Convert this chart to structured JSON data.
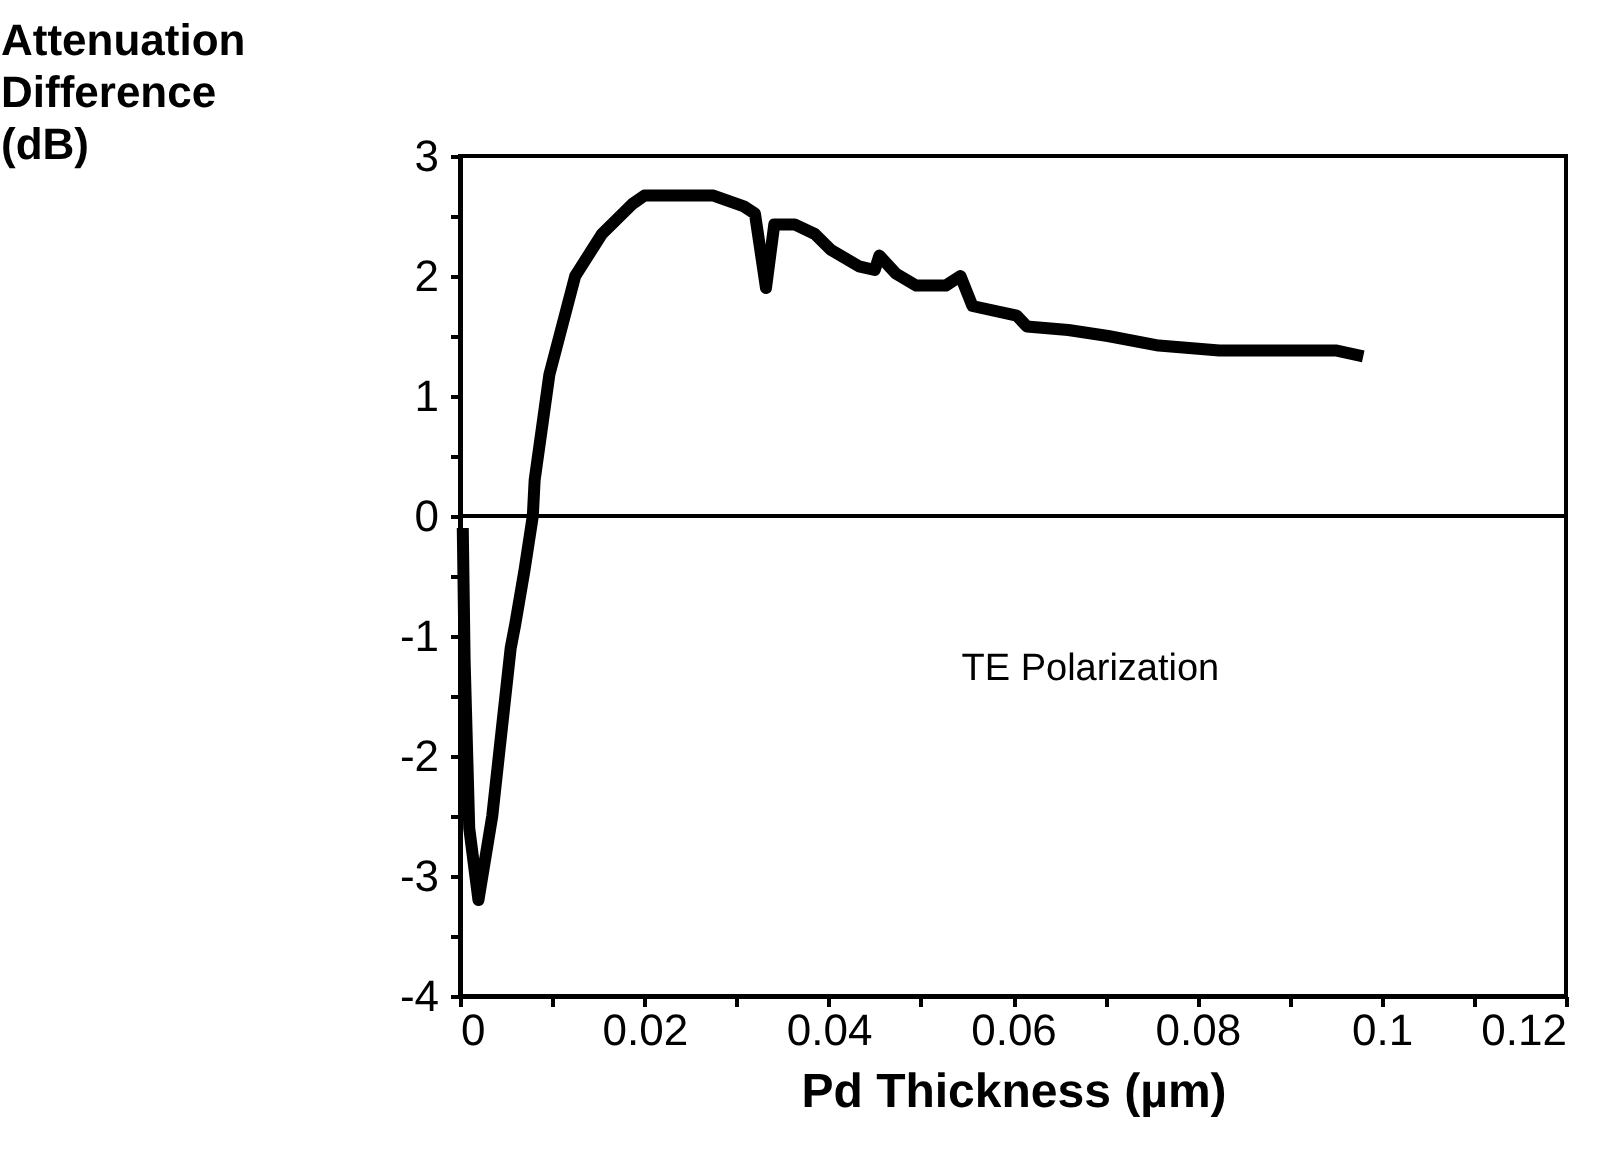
{
  "chart_data": {
    "type": "line",
    "xlabel": "Pd Thickness (µm)",
    "ylabel": "Attenuation Difference (dB)",
    "annotations": [
      "TE Polarization"
    ],
    "x": [
      0.0003,
      0.0005,
      0.001,
      0.002,
      0.0035,
      0.0055,
      0.006,
      0.007,
      0.0079,
      0.0081,
      0.0097,
      0.0125,
      0.0154,
      0.0187,
      0.02,
      0.0275,
      0.0308,
      0.032,
      0.0332,
      0.0341,
      0.0363,
      0.0385,
      0.0402,
      0.0433,
      0.045,
      0.0455,
      0.0473,
      0.0495,
      0.0527,
      0.0543,
      0.0556,
      0.0604,
      0.0615,
      0.066,
      0.0703,
      0.0758,
      0.0824,
      0.095,
      0.098
    ],
    "series": [
      {
        "color": "#000000",
        "values": [
          -0.1,
          -1.2,
          -2.6,
          -3.2,
          -2.5,
          -1.1,
          -0.9,
          -0.45,
          0,
          0.3,
          1.18,
          2.0,
          2.35,
          2.6,
          2.67,
          2.67,
          2.58,
          2.52,
          1.9,
          2.43,
          2.43,
          2.35,
          2.22,
          2.08,
          2.05,
          2.17,
          2.02,
          1.92,
          1.92,
          2.0,
          1.75,
          1.67,
          1.58,
          1.55,
          1.5,
          1.42,
          1.38,
          1.38,
          1.33
        ]
      }
    ],
    "xlim": [
      0,
      0.12
    ],
    "ylim": [
      -4,
      3
    ],
    "xticks": [
      0,
      {
        "value": 0.01,
        "label": null
      },
      0.02,
      {
        "value": 0.03,
        "label": null
      },
      0.04,
      {
        "value": 0.05,
        "label": null
      },
      0.06,
      {
        "value": 0.07,
        "label": null
      },
      0.08,
      {
        "value": 0.09,
        "label": null
      },
      0.1,
      {
        "value": 0.11,
        "label": null
      },
      0.12
    ],
    "yticks": [
      -4,
      {
        "value": -3.5,
        "label": null
      },
      -3,
      {
        "value": -2.5,
        "label": null
      },
      -2,
      {
        "value": -1.5,
        "label": null
      },
      -1,
      {
        "value": -0.5,
        "label": null
      },
      0,
      {
        "value": 0.5,
        "label": null
      },
      1,
      {
        "value": 1.5,
        "label": null
      },
      2,
      {
        "value": 2.5,
        "label": null
      },
      3
    ],
    "ref_lines": [
      {
        "axis": "y",
        "value": 0,
        "color": "#000000"
      }
    ],
    "grid": false,
    "marker": "none",
    "line_style": "solid"
  }
}
